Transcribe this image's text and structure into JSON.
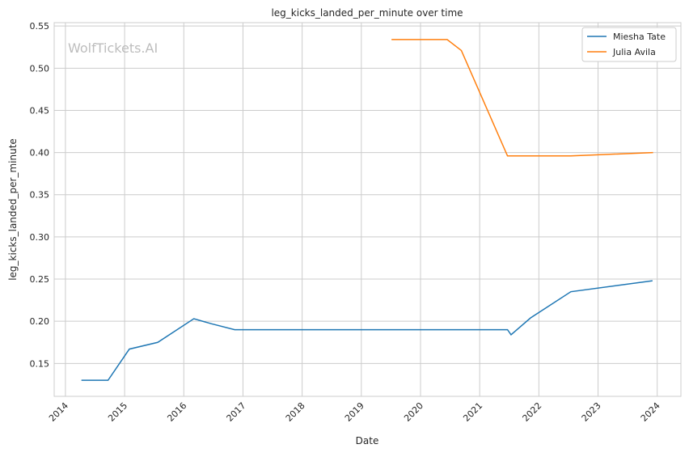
{
  "chart_data": {
    "type": "line",
    "title": "leg_kicks_landed_per_minute over time",
    "xlabel": "Date",
    "ylabel": "leg_kicks_landed_per_minute",
    "watermark": "WolfTickets.AI",
    "xlim": [
      2013.81,
      2024.4
    ],
    "ylim": [
      0.111,
      0.554
    ],
    "xticks": [
      2014,
      2015,
      2016,
      2017,
      2018,
      2019,
      2020,
      2021,
      2022,
      2023,
      2024
    ],
    "xtick_labels": [
      "2014",
      "2015",
      "2016",
      "2017",
      "2018",
      "2019",
      "2020",
      "2021",
      "2022",
      "2023",
      "2024"
    ],
    "yticks": [
      0.15,
      0.2,
      0.25,
      0.3,
      0.35,
      0.4,
      0.45,
      0.5,
      0.55
    ],
    "ytick_labels": [
      "0.15",
      "0.20",
      "0.25",
      "0.30",
      "0.35",
      "0.40",
      "0.45",
      "0.50",
      "0.55"
    ],
    "grid": true,
    "legend_position": "top-right",
    "series": [
      {
        "name": "Miesha Tate",
        "color": "#1f77b4",
        "x": [
          2014.27,
          2014.72,
          2015.08,
          2015.56,
          2016.17,
          2016.47,
          2016.86,
          2021.47,
          2021.53,
          2021.86,
          2022.54,
          2023.92
        ],
        "y": [
          0.13,
          0.13,
          0.167,
          0.175,
          0.203,
          0.197,
          0.19,
          0.19,
          0.184,
          0.204,
          0.235,
          0.248
        ]
      },
      {
        "name": "Julia Avila",
        "color": "#ff7f0e",
        "x": [
          2019.51,
          2020.45,
          2020.69,
          2021.47,
          2022.54,
          2023.93
        ],
        "y": [
          0.534,
          0.534,
          0.521,
          0.396,
          0.396,
          0.4
        ]
      }
    ]
  }
}
